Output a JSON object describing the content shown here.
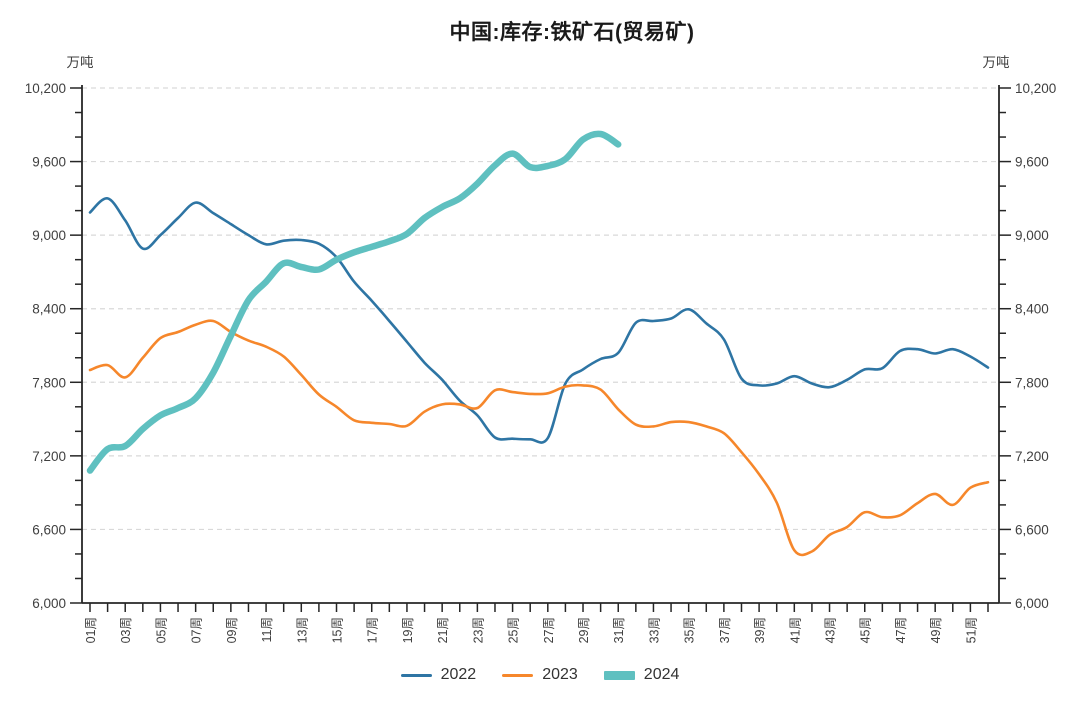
{
  "title": "中国:库存:铁矿石(贸易矿)",
  "chart_data": {
    "type": "line",
    "title": "中国:库存:铁矿石(贸易矿)",
    "unit_label_left": "万吨",
    "unit_label_right": "万吨",
    "x_unit_suffix": "周",
    "x_tick_labels": [
      "01周",
      "03周",
      "05周",
      "07周",
      "09周",
      "11周",
      "13周",
      "15周",
      "17周",
      "19周",
      "21周",
      "23周",
      "25周",
      "27周",
      "29周",
      "31周",
      "33周",
      "35周",
      "37周",
      "39周",
      "41周",
      "43周",
      "45周",
      "47周",
      "49周",
      "51周"
    ],
    "x_weeks_total": 52,
    "ylim": [
      6000,
      10200
    ],
    "y_major_step": 600,
    "y_minor_step": 200,
    "y_major_ticks": [
      "6,000",
      "6,600",
      "7,200",
      "7,800",
      "8,400",
      "9,000",
      "9,600",
      "10,200"
    ],
    "grid": "horizontal-dashed",
    "legend_position": "bottom-center",
    "axis_color": "#262626",
    "grid_color": "#d9d9d9",
    "tick_label_color": "#404040",
    "series": [
      {
        "name": "2022",
        "color": "#2e75a4",
        "line_width": 2.6,
        "start_week": 1,
        "values": [
          9185,
          9300,
          9120,
          8890,
          9000,
          9140,
          9265,
          9180,
          9090,
          9000,
          8925,
          8955,
          8960,
          8930,
          8820,
          8620,
          8465,
          8300,
          8130,
          7960,
          7820,
          7650,
          7530,
          7350,
          7340,
          7335,
          7345,
          7790,
          7905,
          7990,
          8040,
          8285,
          8300,
          8320,
          8395,
          8280,
          8150,
          7830,
          7775,
          7790,
          7850,
          7790,
          7760,
          7820,
          7905,
          7915,
          8055,
          8070,
          8035,
          8070,
          8010,
          7920
        ]
      },
      {
        "name": "2023",
        "color": "#f6872b",
        "line_width": 2.6,
        "start_week": 1,
        "values": [
          7900,
          7940,
          7840,
          8000,
          8160,
          8210,
          8270,
          8300,
          8210,
          8140,
          8090,
          8010,
          7860,
          7700,
          7600,
          7490,
          7470,
          7460,
          7445,
          7560,
          7620,
          7620,
          7590,
          7735,
          7720,
          7705,
          7710,
          7765,
          7775,
          7740,
          7580,
          7455,
          7440,
          7475,
          7475,
          7440,
          7385,
          7230,
          7050,
          6820,
          6430,
          6420,
          6555,
          6620,
          6740,
          6700,
          6715,
          6815,
          6890,
          6800,
          6940,
          6985
        ]
      },
      {
        "name": "2024",
        "color": "#5fc0c0",
        "line_width": 6.5,
        "start_week": 1,
        "values": [
          7080,
          7255,
          7280,
          7420,
          7530,
          7590,
          7670,
          7880,
          8180,
          8470,
          8620,
          8770,
          8740,
          8720,
          8800,
          8860,
          8905,
          8950,
          9010,
          9140,
          9230,
          9300,
          9420,
          9570,
          9665,
          9555,
          9565,
          9620,
          9780,
          9825,
          9740
        ]
      }
    ]
  }
}
